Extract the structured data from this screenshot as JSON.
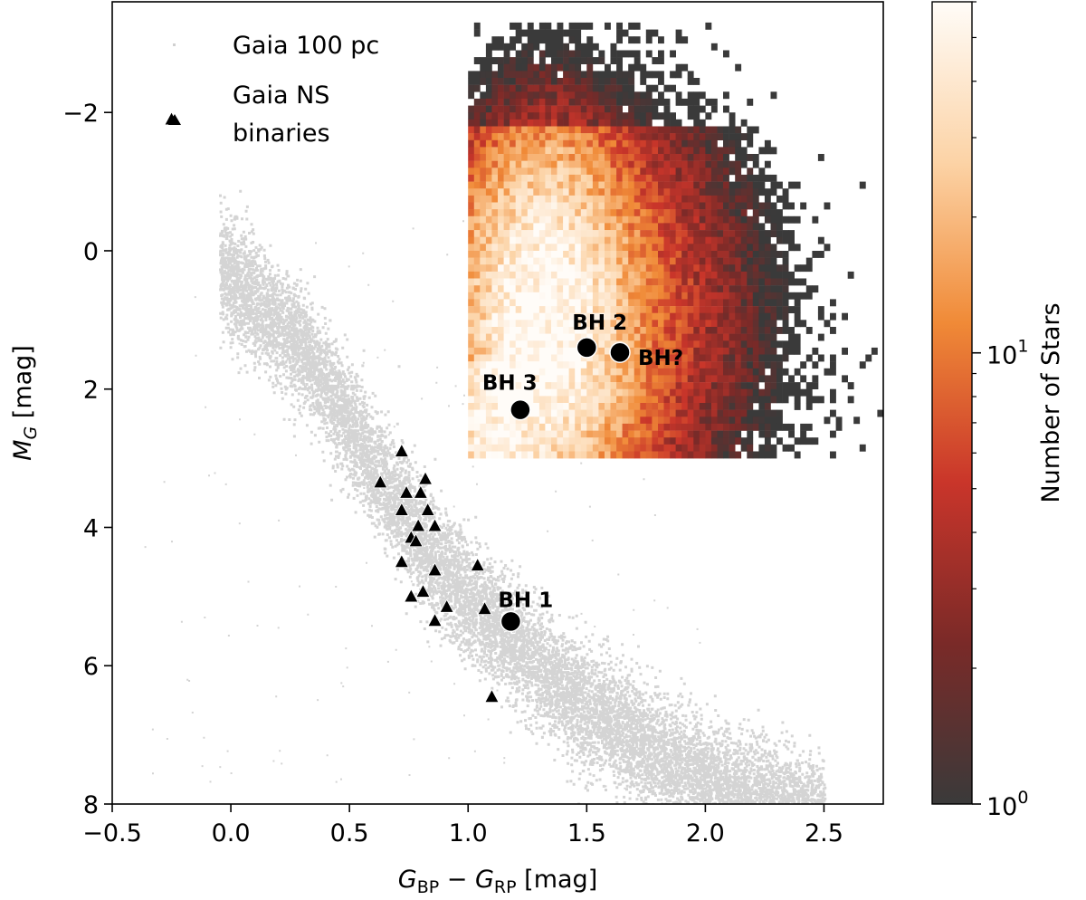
{
  "chart_data": {
    "type": "scatter",
    "xlabel": {
      "main": "G",
      "sub1": "BP",
      "minus": " − ",
      "main2": "G",
      "sub2": "RP",
      "unit": " [mag]"
    },
    "ylabel": {
      "main": "M",
      "sub": "G",
      "unit": " [mag]"
    },
    "xlim": [
      -0.5,
      2.75
    ],
    "ylim": [
      8,
      -3.6
    ],
    "y_inverted": true,
    "x_ticks": [
      -0.5,
      0.0,
      0.5,
      1.0,
      1.5,
      2.0,
      2.5
    ],
    "x_tick_labels": [
      "−0.5",
      "0.0",
      "0.5",
      "1.0",
      "1.5",
      "2.0",
      "2.5"
    ],
    "y_ticks": [
      -2,
      0,
      2,
      4,
      6,
      8
    ],
    "y_tick_labels": [
      "−2",
      "0",
      "2",
      "4",
      "6",
      "8"
    ],
    "legend": {
      "placement": "top-left",
      "entries": [
        {
          "label": "Gaia 100 pc",
          "marker": "gray-dot"
        },
        {
          "label_line1": "Gaia NS",
          "label_line2": "binaries",
          "marker": "black-triangle"
        }
      ]
    },
    "background_population": {
      "name": "Gaia 100 pc",
      "color": "#d4d4d4",
      "main_sequence_ridge": [
        [
          0.0,
          0.4
        ],
        [
          0.3,
          1.4
        ],
        [
          0.6,
          3.1
        ],
        [
          0.8,
          4.2
        ],
        [
          1.0,
          5.0
        ],
        [
          1.2,
          5.7
        ],
        [
          1.5,
          6.6
        ],
        [
          1.8,
          7.3
        ],
        [
          2.1,
          7.8
        ],
        [
          2.3,
          8.0
        ]
      ]
    },
    "heatmap": {
      "name": "Number of Stars",
      "x_range": [
        1.0,
        2.75
      ],
      "y_range": [
        -3.3,
        3.0
      ],
      "scale": "log",
      "peak": [
        1.3,
        1.0
      ]
    },
    "colorbar": {
      "label": "Number of Stars",
      "scale": "log",
      "range": [
        1,
        60
      ],
      "tick_labels": [
        {
          "value": 1,
          "base": "10",
          "exp": "0"
        },
        {
          "value": 10,
          "base": "10",
          "exp": "1"
        }
      ],
      "colors": [
        "#3a3a3a",
        "#7a2a28",
        "#c9352a",
        "#f08a37",
        "#fcd3a6",
        "#fffcf8"
      ]
    },
    "ns_binaries": {
      "name": "Gaia NS binaries",
      "marker": "triangle",
      "color": "#000000",
      "points": [
        [
          -0.25,
          -1.9
        ],
        [
          0.72,
          2.9
        ],
        [
          0.63,
          3.35
        ],
        [
          0.82,
          3.3
        ],
        [
          0.74,
          3.5
        ],
        [
          0.8,
          3.5
        ],
        [
          0.72,
          3.75
        ],
        [
          0.83,
          3.75
        ],
        [
          0.79,
          3.98
        ],
        [
          0.86,
          3.98
        ],
        [
          0.76,
          4.15
        ],
        [
          0.78,
          4.2
        ],
        [
          0.72,
          4.5
        ],
        [
          0.86,
          4.62
        ],
        [
          1.04,
          4.55
        ],
        [
          0.81,
          4.93
        ],
        [
          0.76,
          5.0
        ],
        [
          0.91,
          5.15
        ],
        [
          1.07,
          5.18
        ],
        [
          0.86,
          5.35
        ],
        [
          1.1,
          6.45
        ]
      ]
    },
    "black_holes": [
      {
        "label": "BH 1",
        "x": 1.18,
        "y": 5.36
      },
      {
        "label": "BH 2",
        "x": 1.5,
        "y": 1.4
      },
      {
        "label": "BH?",
        "x": 1.64,
        "y": 1.47
      },
      {
        "label": "BH 3",
        "x": 1.22,
        "y": 2.3
      }
    ]
  }
}
